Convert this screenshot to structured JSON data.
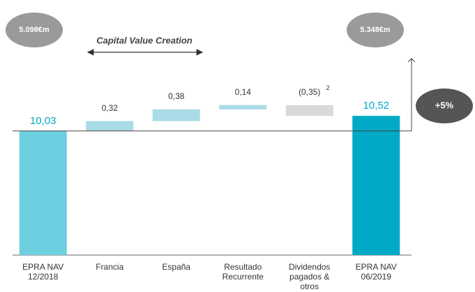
{
  "chart_data": {
    "type": "waterfall",
    "categories": [
      [
        "EPRA NAV",
        "12/2018"
      ],
      [
        "Francia"
      ],
      [
        "España"
      ],
      [
        "Resultado",
        "Recurrente"
      ],
      [
        "Dividendos",
        "pagados &",
        "otros"
      ],
      [
        "EPRA NAV",
        "06/2019"
      ]
    ],
    "values": [
      10.03,
      0.32,
      0.38,
      0.14,
      -0.35,
      10.52
    ],
    "value_labels": [
      "10,03",
      "0,32",
      "0,38",
      "0,14",
      "(0,35)",
      "10,52"
    ],
    "measures": [
      "total",
      "relative",
      "relative",
      "relative",
      "relative",
      "total"
    ],
    "colors": [
      "#6dcfe0",
      "#a9dce7",
      "#a9dce7",
      "#a9dce7",
      "#d9d9d9",
      "#00a9c6"
    ],
    "ylim": [
      6,
      11
    ],
    "annotations": {
      "start_total": "5.098€m",
      "end_total": "5.348€m",
      "change": "+5%",
      "bracket": "Capital Value Creation",
      "footnote_mark": "2"
    }
  }
}
